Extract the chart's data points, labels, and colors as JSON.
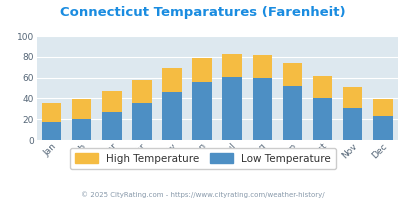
{
  "title": "Connecticut Temparatures (Farenheit)",
  "months": [
    "Jan",
    "Feb",
    "Mar",
    "Apr",
    "May",
    "Jun",
    "Jul",
    "Aug",
    "Sep",
    "Oct",
    "Nov",
    "Dec"
  ],
  "low_temps": [
    17,
    20,
    27,
    36,
    46,
    56,
    61,
    60,
    52,
    40,
    31,
    23
  ],
  "high_temps": [
    36,
    39,
    47,
    58,
    69,
    79,
    83,
    82,
    74,
    62,
    51,
    39
  ],
  "low_color": "#4d8fc4",
  "high_color": "#f5bc42",
  "title_color": "#1a8ce0",
  "bg_color": "#ffffff",
  "plot_bg_color": "#dde8ef",
  "grid_color": "#ffffff",
  "ylim": [
    0,
    100
  ],
  "ylabel_ticks": [
    0,
    20,
    40,
    60,
    80,
    100
  ],
  "footnote": "© 2025 CityRating.com - https://www.cityrating.com/weather-history/",
  "footnote_color": "#8899aa",
  "legend_text_color": "#333333"
}
